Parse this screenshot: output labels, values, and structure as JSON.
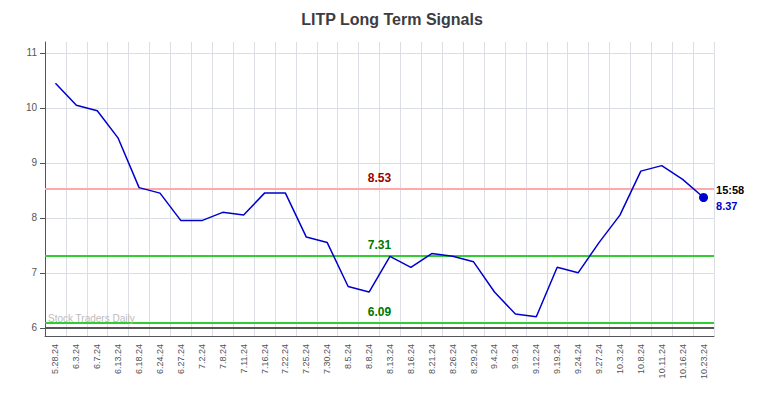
{
  "chart_data": {
    "type": "line",
    "title": "LITP Long Term Signals",
    "categories": [
      "5.28.24",
      "6.3.24",
      "6.7.24",
      "6.13.24",
      "6.18.24",
      "6.24.24",
      "6.27.24",
      "7.2.24",
      "7.8.24",
      "7.11.24",
      "7.16.24",
      "7.22.24",
      "7.25.24",
      "7.30.24",
      "8.5.24",
      "8.8.24",
      "8.13.24",
      "8.16.24",
      "8.21.24",
      "8.26.24",
      "8.29.24",
      "9.4.24",
      "9.9.24",
      "9.12.24",
      "9.19.24",
      "9.24.24",
      "9.27.24",
      "10.3.24",
      "10.8.24",
      "10.11.24",
      "10.16.24",
      "10.23.24"
    ],
    "values": [
      10.45,
      10.05,
      9.95,
      9.45,
      8.55,
      8.45,
      7.95,
      7.95,
      8.1,
      8.05,
      8.45,
      8.45,
      7.65,
      7.55,
      6.75,
      6.65,
      7.3,
      7.1,
      7.35,
      7.3,
      7.2,
      6.65,
      6.25,
      6.2,
      7.1,
      7.0,
      7.55,
      8.05,
      8.85,
      8.95,
      8.7,
      8.37
    ],
    "color": "#0000cc",
    "ylim": [
      5.85,
      11.2
    ],
    "yticks": [
      6,
      7,
      8,
      9,
      10,
      11
    ],
    "grid": true,
    "reference_lines": [
      {
        "value": 8.53,
        "label": "8.53",
        "color": "#ffaaaa",
        "label_color": "#990000"
      },
      {
        "value": 7.31,
        "label": "7.31",
        "color": "#33cc33",
        "label_color": "#007700"
      },
      {
        "value": 6.09,
        "label": "6.09",
        "color": "#33cc33",
        "label_color": "#007700"
      },
      {
        "value": 6.0,
        "color": "#555555"
      }
    ],
    "last_point": {
      "labels": [
        "15:58",
        "8.37"
      ],
      "color": "#0000cc"
    },
    "watermark": "Stock Traders Daily"
  }
}
